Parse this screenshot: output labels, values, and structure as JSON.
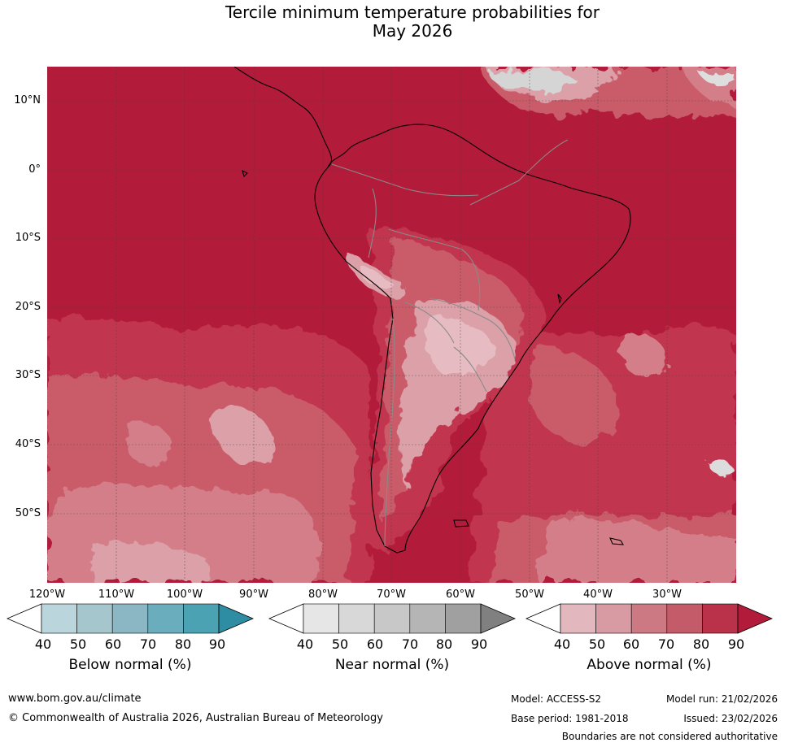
{
  "title": {
    "line1": "Tercile minimum temperature probabilities for",
    "line2": "May 2026"
  },
  "map": {
    "region": "South America and surrounding oceans",
    "lat_labels": [
      "10°N",
      "0°",
      "10°S",
      "20°S",
      "30°S",
      "40°S",
      "50°S"
    ],
    "lon_labels": [
      "120°W",
      "110°W",
      "100°W",
      "90°W",
      "80°W",
      "70°W",
      "60°W",
      "50°W",
      "40°W",
      "30°W"
    ],
    "dominant_category": "Above normal",
    "colors": {
      "above_90": "#b21b3a",
      "above_80": "#c2364f",
      "above_70": "#ca5b6b",
      "above_60": "#d47e89",
      "above_50": "#dba0a8",
      "above_40": "#e6bcc2",
      "near_50": "#d5d5d5",
      "near_70": "#a8a8a8",
      "coast": "#000000",
      "border": "#8a8a8a",
      "gridline": "#444444"
    }
  },
  "legend": {
    "tick_values": [
      "40",
      "50",
      "60",
      "70",
      "80",
      "90"
    ],
    "bars": [
      {
        "label": "Below normal (%)",
        "colors": [
          "#ffffff",
          "#bad5dc",
          "#a6c6ce",
          "#8bb6c3",
          "#6aadbc",
          "#4aa2b3",
          "#2e8ca3"
        ]
      },
      {
        "label": "Near normal (%)",
        "colors": [
          "#ffffff",
          "#e6e6e6",
          "#d8d8d8",
          "#c8c8c8",
          "#b5b5b5",
          "#a0a0a0",
          "#808080"
        ]
      },
      {
        "label": "Above normal (%)",
        "colors": [
          "#ffffff",
          "#e2b7bd",
          "#d99ba3",
          "#cd7983",
          "#c45b69",
          "#b93249",
          "#b21b3a"
        ]
      }
    ]
  },
  "footer": {
    "website": "www.bom.gov.au/climate",
    "copyright": "© Commonwealth of Australia 2026, Australian Bureau of Meteorology",
    "model": "Model: ACCESS-S2",
    "base_period": "Base period: 1981-2018",
    "model_run": "Model run: 21/02/2026",
    "issued": "Issued: 23/02/2026",
    "disclaimer": "Boundaries are not considered authoritative"
  }
}
